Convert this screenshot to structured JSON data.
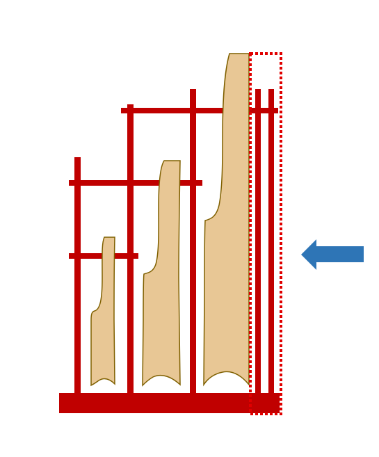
{
  "diagram": {
    "description_elements": {
      "frame": {
        "color": "#c00000"
      },
      "pieces": {
        "fill": "#e8c795",
        "stroke": "#7f6000",
        "items": [
          {
            "name": "small-piece"
          },
          {
            "name": "medium-piece"
          },
          {
            "name": "large-piece"
          }
        ]
      },
      "highlight": {
        "color": "#e00000",
        "style": "dotted"
      },
      "arrow": {
        "color": "#2e75b6",
        "direction": "left",
        "icon": "arrow-left-icon"
      }
    }
  }
}
